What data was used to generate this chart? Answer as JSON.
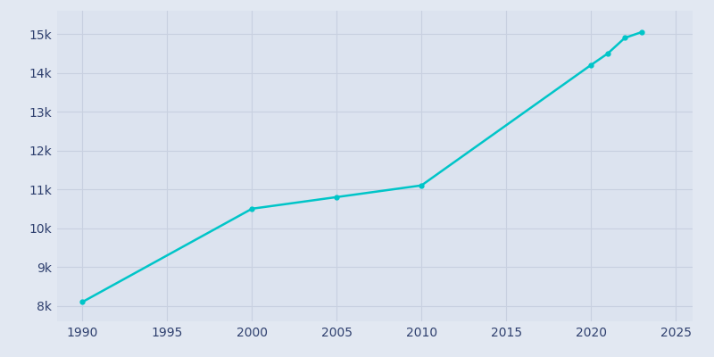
{
  "years": [
    1990,
    2000,
    2005,
    2010,
    2020,
    2021,
    2022,
    2023
  ],
  "population": [
    8100,
    10500,
    10800,
    11100,
    14200,
    14500,
    14900,
    15050
  ],
  "line_color": "#00c5c8",
  "line_width": 1.8,
  "marker": "o",
  "marker_size": 3.5,
  "background_color": "#e2e8f2",
  "plot_bg_color": "#dce3ef",
  "grid_color": "#c8d0e0",
  "tick_label_color": "#2e3f6e",
  "xlim": [
    1988.5,
    2026
  ],
  "ylim": [
    7600,
    15600
  ],
  "yticks": [
    8000,
    9000,
    10000,
    11000,
    12000,
    13000,
    14000,
    15000
  ],
  "ytick_labels": [
    "8k",
    "9k",
    "10k",
    "11k",
    "12k",
    "13k",
    "14k",
    "15k"
  ],
  "xticks": [
    1990,
    1995,
    2000,
    2005,
    2010,
    2015,
    2020,
    2025
  ]
}
